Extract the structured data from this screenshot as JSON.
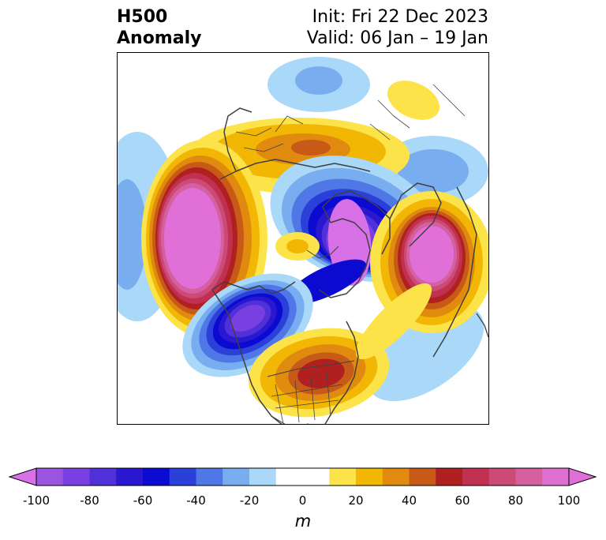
{
  "title": {
    "line1": "H500",
    "line2": "Anomaly",
    "init": "Init: Fri 22 Dec 2023",
    "valid": "Valid: 06 Jan – 19 Jan"
  },
  "colorbar": {
    "units": "m",
    "extend": "both",
    "min": -100,
    "max": 100,
    "step": 10,
    "tick_labels": [
      "-100",
      "-80",
      "-60",
      "-40",
      "-20",
      "0",
      "20",
      "40",
      "60",
      "80",
      "100"
    ],
    "colors": [
      "#9a55e0",
      "#7a3fe0",
      "#5030d8",
      "#2a18d0",
      "#0a0ad0",
      "#2a40d8",
      "#4f78e6",
      "#78aef0",
      "#aad8f8",
      "#ffffff",
      "#ffffff",
      "#fde34a",
      "#f2b705",
      "#e08a10",
      "#c85a18",
      "#b02020",
      "#c03050",
      "#cc4a76",
      "#d460a0",
      "#e070d0"
    ],
    "under_color": "#d870e8",
    "over_color": "#e070d8"
  },
  "map": {
    "projection": "north-polar-stereographic",
    "features": [
      {
        "name": "west-coast-pacific-ridge",
        "sign": "positive",
        "peak": 100
      },
      {
        "name": "hudson-bay-polar-low",
        "sign": "negative",
        "peak": -100
      },
      {
        "name": "siberia-ridge",
        "sign": "positive",
        "peak": 100
      },
      {
        "name": "alaska-bering-trough",
        "sign": "negative",
        "peak": -90
      },
      {
        "name": "southeast-us-ridge",
        "sign": "positive",
        "peak": 60
      },
      {
        "name": "arctic-high",
        "sign": "positive",
        "peak": 40
      }
    ]
  }
}
